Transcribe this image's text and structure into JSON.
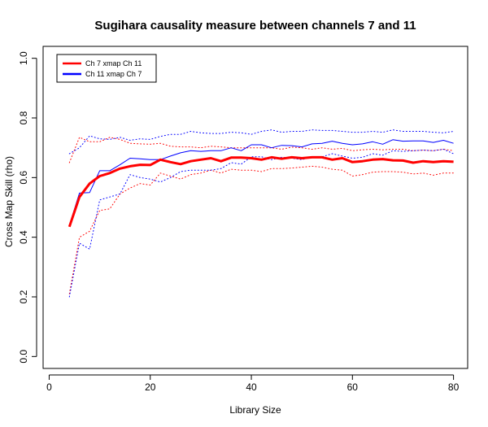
{
  "chart_data": {
    "type": "line",
    "title": "Sugihara causality measure between channels  7 and 11",
    "xlabel": "Library Size",
    "ylabel": "Cross Map Skill (rho)",
    "xlim": [
      0,
      80
    ],
    "ylim": [
      0,
      1
    ],
    "xticks": [
      0,
      20,
      40,
      60,
      80
    ],
    "yticks": [
      0.0,
      0.2,
      0.4,
      0.6,
      0.8,
      1.0
    ],
    "xtick_labels": [
      "0",
      "20",
      "40",
      "60",
      "80"
    ],
    "ytick_labels": [
      "0.0",
      "0.2",
      "0.4",
      "0.6",
      "0.8",
      "1.0"
    ],
    "legend_position": "top-left",
    "grid": false,
    "x": [
      4,
      6,
      8,
      10,
      12,
      14,
      16,
      18,
      20,
      22,
      24,
      26,
      28,
      30,
      32,
      34,
      36,
      38,
      40,
      42,
      44,
      46,
      48,
      50,
      52,
      54,
      56,
      58,
      60,
      62,
      64,
      66,
      68,
      70,
      72,
      74,
      76,
      78,
      80
    ],
    "series": [
      {
        "name": "Ch 7 xmap Ch 11",
        "color": "#ff0000",
        "width": 3,
        "style": "solid",
        "values": [
          0.435,
          0.535,
          0.58,
          0.605,
          0.615,
          0.63,
          0.638,
          0.643,
          0.642,
          0.66,
          0.652,
          0.645,
          0.655,
          0.66,
          0.665,
          0.655,
          0.667,
          0.667,
          0.665,
          0.66,
          0.668,
          0.663,
          0.668,
          0.665,
          0.668,
          0.668,
          0.66,
          0.665,
          0.652,
          0.655,
          0.66,
          0.662,
          0.658,
          0.657,
          0.65,
          0.655,
          0.652,
          0.655,
          0.653
        ]
      },
      {
        "name": "Ch 11  xmap Ch 7",
        "color": "#0000ff",
        "width": 1,
        "style": "solid",
        "values": [
          0.44,
          0.548,
          0.55,
          0.623,
          0.623,
          0.643,
          0.665,
          0.663,
          0.66,
          0.66,
          0.672,
          0.683,
          0.69,
          0.688,
          0.69,
          0.69,
          0.7,
          0.69,
          0.71,
          0.71,
          0.7,
          0.708,
          0.707,
          0.703,
          0.713,
          0.715,
          0.722,
          0.715,
          0.71,
          0.713,
          0.72,
          0.712,
          0.727,
          0.722,
          0.723,
          0.723,
          0.718,
          0.725,
          0.715
        ]
      },
      {
        "name": "",
        "color": "#ff0000",
        "width": 1,
        "style": "dotted",
        "values": [
          0.65,
          0.735,
          0.72,
          0.72,
          0.735,
          0.728,
          0.715,
          0.713,
          0.712,
          0.715,
          0.705,
          0.703,
          0.703,
          0.7,
          0.705,
          0.703,
          0.7,
          0.7,
          0.7,
          0.7,
          0.7,
          0.695,
          0.702,
          0.7,
          0.695,
          0.7,
          0.695,
          0.698,
          0.69,
          0.693,
          0.695,
          0.693,
          0.695,
          0.695,
          0.69,
          0.692,
          0.69,
          0.695,
          0.69
        ]
      },
      {
        "name": "",
        "color": "#ff0000",
        "width": 1,
        "style": "dotted",
        "values": [
          0.21,
          0.4,
          0.42,
          0.49,
          0.495,
          0.545,
          0.565,
          0.58,
          0.575,
          0.615,
          0.605,
          0.595,
          0.61,
          0.615,
          0.625,
          0.615,
          0.628,
          0.625,
          0.625,
          0.62,
          0.63,
          0.63,
          0.632,
          0.635,
          0.638,
          0.635,
          0.628,
          0.625,
          0.605,
          0.61,
          0.618,
          0.62,
          0.62,
          0.618,
          0.612,
          0.615,
          0.608,
          0.615,
          0.615
        ]
      },
      {
        "name": "",
        "color": "#0000ff",
        "width": 1,
        "style": "dotted",
        "values": [
          0.68,
          0.7,
          0.74,
          0.73,
          0.728,
          0.735,
          0.725,
          0.73,
          0.728,
          0.738,
          0.745,
          0.745,
          0.755,
          0.75,
          0.748,
          0.748,
          0.752,
          0.75,
          0.745,
          0.755,
          0.76,
          0.752,
          0.755,
          0.755,
          0.76,
          0.758,
          0.758,
          0.755,
          0.752,
          0.752,
          0.755,
          0.752,
          0.76,
          0.755,
          0.755,
          0.755,
          0.752,
          0.75,
          0.755
        ]
      },
      {
        "name": "",
        "color": "#0000ff",
        "width": 1,
        "style": "dotted",
        "values": [
          0.2,
          0.38,
          0.36,
          0.525,
          0.535,
          0.545,
          0.61,
          0.6,
          0.595,
          0.585,
          0.6,
          0.62,
          0.625,
          0.625,
          0.625,
          0.63,
          0.65,
          0.645,
          0.67,
          0.67,
          0.66,
          0.668,
          0.665,
          0.66,
          0.67,
          0.67,
          0.68,
          0.672,
          0.665,
          0.668,
          0.68,
          0.675,
          0.69,
          0.688,
          0.69,
          0.692,
          0.69,
          0.695,
          0.68
        ]
      }
    ]
  }
}
